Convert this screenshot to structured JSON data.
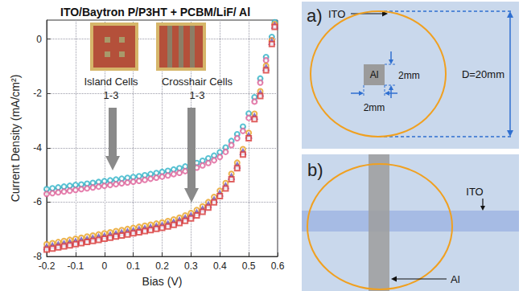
{
  "chart_data": {
    "type": "scatter",
    "title": "ITO/Baytron P/P3HT + PCBM/LiF/ Al",
    "x_label": "Bias (V)",
    "y_label": "Current Density (mA/cm²)",
    "xlim": [
      -0.2,
      0.6
    ],
    "ylim": [
      -8,
      0.7
    ],
    "xticks": [
      -0.2,
      -0.1,
      0,
      0.1,
      0.2,
      0.3,
      0.4,
      0.5,
      0.6
    ],
    "yticks": [
      -8,
      -6,
      -4,
      -2,
      0
    ],
    "grid": true,
    "x": [
      -0.2,
      -0.18,
      -0.16,
      -0.14,
      -0.12,
      -0.1,
      -0.08,
      -0.06,
      -0.04,
      -0.02,
      0,
      0.02,
      0.04,
      0.06,
      0.08,
      0.1,
      0.12,
      0.14,
      0.16,
      0.18,
      0.2,
      0.22,
      0.24,
      0.26,
      0.28,
      0.3,
      0.32,
      0.34,
      0.36,
      0.38,
      0.4,
      0.42,
      0.44,
      0.46,
      0.48,
      0.5,
      0.52,
      0.54,
      0.56,
      0.58,
      0.59
    ],
    "series": [
      {
        "color": "#1a1a1a",
        "marker": "x",
        "values": [
          -5.62,
          -5.59,
          -5.56,
          -5.53,
          -5.5,
          -5.47,
          -5.44,
          -5.41,
          -5.38,
          -5.35,
          -5.32,
          -5.29,
          -5.26,
          -5.23,
          -5.2,
          -5.17,
          -5.14,
          -5.1,
          -5.06,
          -5.02,
          -4.98,
          -4.94,
          -4.89,
          -4.84,
          -4.78,
          -4.72,
          -4.65,
          -4.57,
          -4.48,
          -4.38,
          -4.26,
          -4.07,
          -3.82,
          -3.57,
          -3.31,
          -2.82,
          -2.22,
          -1.52,
          -0.72,
          0.02,
          0.58
        ]
      },
      {
        "color": "#2fb3c8",
        "marker": "circle",
        "values": [
          -5.52,
          -5.49,
          -5.46,
          -5.43,
          -5.4,
          -5.37,
          -5.35,
          -5.32,
          -5.29,
          -5.26,
          -5.23,
          -5.2,
          -5.17,
          -5.14,
          -5.11,
          -5.08,
          -5.05,
          -5.01,
          -4.97,
          -4.93,
          -4.89,
          -4.85,
          -4.8,
          -4.75,
          -4.69,
          -4.63,
          -4.56,
          -4.48,
          -4.39,
          -4.29,
          -4.17,
          -3.99,
          -3.75,
          -3.5,
          -3.22,
          -2.74,
          -2.14,
          -1.45,
          -0.66,
          0.08,
          0.62
        ]
      },
      {
        "color": "#e0609a",
        "marker": "circle",
        "values": [
          -5.7,
          -5.67,
          -5.64,
          -5.61,
          -5.58,
          -5.55,
          -5.52,
          -5.49,
          -5.46,
          -5.43,
          -5.4,
          -5.37,
          -5.34,
          -5.31,
          -5.28,
          -5.25,
          -5.22,
          -5.18,
          -5.14,
          -5.1,
          -5.06,
          -5.02,
          -4.97,
          -4.92,
          -4.86,
          -4.8,
          -4.73,
          -4.65,
          -4.56,
          -4.46,
          -4.34,
          -4.15,
          -3.9,
          -3.65,
          -3.38,
          -2.9,
          -2.3,
          -1.6,
          -0.78,
          -0.04,
          0.52
        ]
      },
      {
        "color": "#e8a020",
        "marker": "circle",
        "values": [
          -7.55,
          -7.51,
          -7.47,
          -7.43,
          -7.39,
          -7.35,
          -7.31,
          -7.27,
          -7.23,
          -7.19,
          -7.15,
          -7.11,
          -7.07,
          -7.03,
          -6.99,
          -6.95,
          -6.91,
          -6.87,
          -6.83,
          -6.79,
          -6.75,
          -6.7,
          -6.64,
          -6.57,
          -6.49,
          -6.4,
          -6.29,
          -6.16,
          -6.0,
          -5.81,
          -5.58,
          -5.3,
          -4.96,
          -4.55,
          -4.05,
          -3.45,
          -2.75,
          -1.92,
          -0.98,
          -0.05,
          0.55
        ]
      },
      {
        "color": "#6a4fc0",
        "marker": "triangle",
        "values": [
          -7.65,
          -7.61,
          -7.57,
          -7.53,
          -7.49,
          -7.45,
          -7.41,
          -7.37,
          -7.33,
          -7.29,
          -7.25,
          -7.21,
          -7.17,
          -7.13,
          -7.09,
          -7.05,
          -7.01,
          -6.97,
          -6.93,
          -6.89,
          -6.85,
          -6.8,
          -6.74,
          -6.67,
          -6.59,
          -6.5,
          -6.39,
          -6.26,
          -6.1,
          -5.91,
          -5.68,
          -5.4,
          -5.06,
          -4.65,
          -4.15,
          -3.55,
          -2.85,
          -2.0,
          -1.05,
          -0.1,
          0.5
        ]
      },
      {
        "color": "#d83a3a",
        "marker": "square",
        "values": [
          -7.75,
          -7.71,
          -7.67,
          -7.63,
          -7.59,
          -7.55,
          -7.51,
          -7.47,
          -7.43,
          -7.39,
          -7.35,
          -7.31,
          -7.27,
          -7.23,
          -7.19,
          -7.15,
          -7.11,
          -7.07,
          -7.03,
          -6.99,
          -6.95,
          -6.9,
          -6.84,
          -6.77,
          -6.69,
          -6.6,
          -6.49,
          -6.36,
          -6.2,
          -6.01,
          -5.78,
          -5.5,
          -5.16,
          -4.75,
          -4.25,
          -3.65,
          -2.95,
          -2.1,
          -1.15,
          -0.18,
          0.45
        ]
      }
    ],
    "annotations": [
      {
        "lines": [
          "Island Cells",
          "1-3"
        ]
      },
      {
        "lines": [
          "Crosshair Cells",
          "1-3"
        ]
      }
    ]
  },
  "diagrams": [
    {
      "label": "a)",
      "substrate": "ITO",
      "electrode": "Al",
      "width": "2mm",
      "height": "2mm",
      "diameter": "D=20mm"
    },
    {
      "label": "b)",
      "substrate": "ITO",
      "electrode": "Al"
    }
  ]
}
